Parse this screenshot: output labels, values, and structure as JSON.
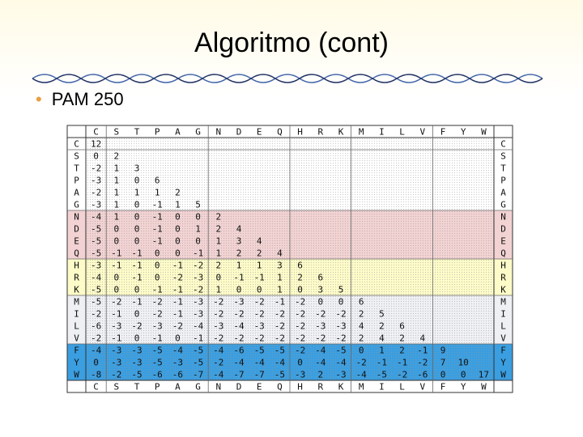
{
  "header": {
    "title": "Algoritmo (cont)"
  },
  "body": {
    "bullet": "PAM 250"
  },
  "table": {
    "columns": [
      "C",
      "S",
      "T",
      "P",
      "A",
      "G",
      "N",
      "D",
      "E",
      "Q",
      "H",
      "R",
      "K",
      "M",
      "I",
      "L",
      "V",
      "F",
      "Y",
      "W"
    ],
    "rows": [
      {
        "label": "C",
        "values": [
          12
        ]
      },
      {
        "label": "S",
        "values": [
          0,
          2
        ]
      },
      {
        "label": "T",
        "values": [
          -2,
          1,
          3
        ]
      },
      {
        "label": "P",
        "values": [
          -3,
          1,
          0,
          6
        ]
      },
      {
        "label": "A",
        "values": [
          -2,
          1,
          1,
          1,
          2
        ]
      },
      {
        "label": "G",
        "values": [
          -3,
          1,
          0,
          -1,
          1,
          5
        ]
      },
      {
        "label": "N",
        "values": [
          -4,
          1,
          0,
          -1,
          0,
          0,
          2
        ]
      },
      {
        "label": "D",
        "values": [
          -5,
          0,
          0,
          -1,
          0,
          1,
          2,
          4
        ]
      },
      {
        "label": "E",
        "values": [
          -5,
          0,
          0,
          -1,
          0,
          0,
          1,
          3,
          4
        ]
      },
      {
        "label": "Q",
        "values": [
          -5,
          -1,
          -1,
          0,
          0,
          -1,
          1,
          2,
          2,
          4
        ]
      },
      {
        "label": "H",
        "values": [
          -3,
          -1,
          -1,
          0,
          -1,
          -2,
          2,
          1,
          1,
          3,
          6
        ]
      },
      {
        "label": "R",
        "values": [
          -4,
          0,
          -1,
          0,
          -2,
          -3,
          0,
          -1,
          -1,
          1,
          2,
          6
        ]
      },
      {
        "label": "K",
        "values": [
          -5,
          0,
          0,
          -1,
          -1,
          -2,
          1,
          0,
          0,
          1,
          0,
          3,
          5
        ]
      },
      {
        "label": "M",
        "values": [
          -5,
          -2,
          -1,
          -2,
          -1,
          -3,
          -2,
          -3,
          -2,
          -1,
          -2,
          0,
          0,
          6
        ]
      },
      {
        "label": "I",
        "values": [
          -2,
          -1,
          0,
          -2,
          -1,
          -3,
          -2,
          -2,
          -2,
          -2,
          -2,
          -2,
          -2,
          2,
          5
        ]
      },
      {
        "label": "L",
        "values": [
          -6,
          -3,
          -2,
          -3,
          -2,
          -4,
          -3,
          -4,
          -3,
          -2,
          -2,
          -3,
          -3,
          4,
          2,
          6
        ]
      },
      {
        "label": "V",
        "values": [
          -2,
          -1,
          0,
          -1,
          0,
          -1,
          -2,
          -2,
          -2,
          -2,
          -2,
          -2,
          -2,
          2,
          4,
          2,
          4
        ]
      },
      {
        "label": "F",
        "values": [
          -4,
          -3,
          -3,
          -5,
          -4,
          -5,
          -4,
          -6,
          -5,
          -5,
          -2,
          -4,
          -5,
          0,
          1,
          2,
          -1,
          9
        ]
      },
      {
        "label": "Y",
        "values": [
          0,
          -3,
          -3,
          -5,
          -3,
          -5,
          -2,
          -4,
          -4,
          -4,
          0,
          -4,
          -4,
          -2,
          -1,
          -1,
          -2,
          7,
          10
        ]
      },
      {
        "label": "W",
        "values": [
          -8,
          -2,
          -5,
          -6,
          -6,
          -7,
          -4,
          -7,
          -7,
          -5,
          -3,
          2,
          -3,
          -4,
          -5,
          -2,
          -6,
          0,
          0,
          17
        ]
      }
    ]
  }
}
